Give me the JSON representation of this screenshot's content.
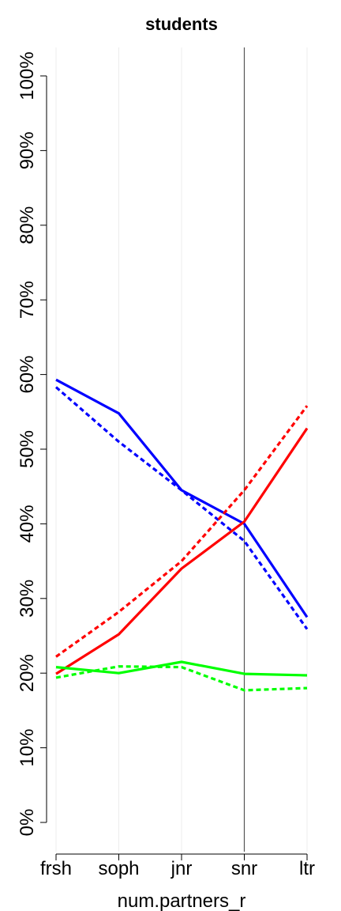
{
  "chart_data": {
    "type": "line",
    "title": "students",
    "xlabel": "num.partners_r",
    "ylabel": "",
    "categories": [
      "frsh",
      "soph",
      "jnr",
      "snr",
      "ltr"
    ],
    "ylim": [
      0,
      100
    ],
    "y_ticks": [
      "0%",
      "10%",
      "20%",
      "30%",
      "40%",
      "50%",
      "60%",
      "70%",
      "80%",
      "90%",
      "100%"
    ],
    "y_tick_values": [
      0,
      10,
      20,
      30,
      40,
      50,
      60,
      70,
      80,
      90,
      100
    ],
    "grid": "vertical gridlines at categories",
    "reference_line": "snr",
    "series": [
      {
        "color": "#0000ff",
        "style": "solid",
        "values": [
          59.3,
          54.8,
          44.5,
          40.0,
          27.5
        ]
      },
      {
        "color": "#0000ff",
        "style": "dotted",
        "values": [
          58.3,
          51.0,
          44.5,
          37.7,
          25.9
        ]
      },
      {
        "color": "#ff0000",
        "style": "solid",
        "values": [
          19.9,
          25.2,
          34.0,
          40.3,
          52.8
        ]
      },
      {
        "color": "#ff0000",
        "style": "dotted",
        "values": [
          22.2,
          28.2,
          35.0,
          44.5,
          55.8
        ]
      },
      {
        "color": "#00ff00",
        "style": "solid",
        "values": [
          20.8,
          20.0,
          21.5,
          19.9,
          19.7
        ]
      },
      {
        "color": "#00ff00",
        "style": "dotted",
        "values": [
          19.4,
          20.9,
          20.8,
          17.7,
          18.0
        ]
      }
    ]
  }
}
